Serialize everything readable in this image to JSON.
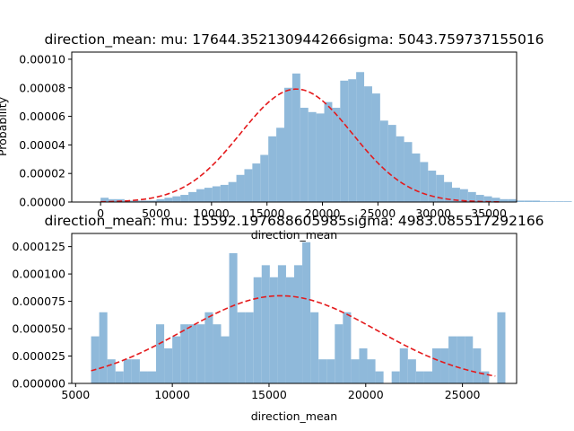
{
  "chart_data": [
    {
      "type": "bar",
      "title": "direction_mean:   mu: 17644.352130944266sigma:  5043.759737155016",
      "xlabel": "direction_mean",
      "ylabel": "Probability",
      "xlim": [
        -2600,
        37500
      ],
      "ylim": [
        0,
        0.000105
      ],
      "xticks": [
        0,
        5000,
        10000,
        15000,
        20000,
        25000,
        30000,
        35000
      ],
      "xtick_labels": [
        "0",
        "5000",
        "10000",
        "15000",
        "20000",
        "25000",
        "30000",
        "35000"
      ],
      "yticks": [
        0,
        2e-05,
        4e-05,
        6e-05,
        8e-05,
        0.0001
      ],
      "ytick_labels": [
        "0.00000",
        "0.00002",
        "0.00004",
        "0.00006",
        "0.00008",
        "0.00010"
      ],
      "bin_start": 0,
      "bin_width": 720,
      "values": [
        3e-06,
        2e-06,
        2e-06,
        1e-06,
        1e-06,
        1e-06,
        1e-06,
        2e-06,
        3e-06,
        4e-06,
        5e-06,
        7e-06,
        9e-06,
        1e-05,
        1.1e-05,
        1.2e-05,
        1.4e-05,
        1.9e-05,
        2.3e-05,
        2.7e-05,
        3.3e-05,
        4.6e-05,
        5.2e-05,
        8e-05,
        9e-05,
        6.6e-05,
        6.3e-05,
        6.2e-05,
        7e-05,
        6.6e-05,
        8.5e-05,
        8.6e-05,
        9.1e-05,
        8.1e-05,
        7.6e-05,
        5.7e-05,
        5.4e-05,
        4.6e-05,
        4.2e-05,
        3.4e-05,
        2.8e-05,
        2.2e-05,
        1.9e-05,
        1.4e-05,
        1e-05,
        9e-06,
        7e-06,
        5e-06,
        4e-06,
        3e-06,
        2e-06,
        2e-06,
        1e-06,
        1e-06,
        1e-06,
        5e-07,
        5e-07,
        5e-07,
        5e-07
      ],
      "fit_curve": {
        "mu": 17644.352130944266,
        "sigma": 5043.759737155016,
        "x_range": [
          0,
          36000
        ]
      },
      "bar_color": "#8fb9da",
      "curve_color": "#e41a1c"
    },
    {
      "type": "bar",
      "title": "direction_mean:   mu: 15592.197688605985sigma:  4983.085517292166",
      "xlabel": "direction_mean",
      "ylabel": "",
      "xlim": [
        4800,
        27800
      ],
      "ylim": [
        0,
        0.000137
      ],
      "xticks": [
        5000,
        10000,
        15000,
        20000,
        25000
      ],
      "xtick_labels": [
        "5000",
        "10000",
        "15000",
        "20000",
        "25000"
      ],
      "yticks": [
        0,
        2.5e-05,
        5e-05,
        7.5e-05,
        0.0001,
        0.000125
      ],
      "ytick_labels": [
        "0.000000",
        "0.000025",
        "0.000050",
        "0.000075",
        "0.000100",
        "0.000125"
      ],
      "bin_start": 5800,
      "bin_width": 420,
      "values": [
        4.3e-05,
        6.5e-05,
        2.2e-05,
        1.1e-05,
        2.2e-05,
        2.2e-05,
        1.1e-05,
        1.1e-05,
        5.4e-05,
        3.2e-05,
        4.3e-05,
        5.4e-05,
        5.4e-05,
        5.4e-05,
        6.5e-05,
        5.4e-05,
        4.3e-05,
        0.000119,
        6.5e-05,
        6.5e-05,
        9.7e-05,
        0.000108,
        9.7e-05,
        0.000108,
        9.7e-05,
        0.000108,
        0.000129,
        6.5e-05,
        2.2e-05,
        2.2e-05,
        5.4e-05,
        6.5e-05,
        2.2e-05,
        3.2e-05,
        2.2e-05,
        1.1e-05,
        0.0,
        1.1e-05,
        3.2e-05,
        2.2e-05,
        1.1e-05,
        1.1e-05,
        3.2e-05,
        3.2e-05,
        4.3e-05,
        4.3e-05,
        4.3e-05,
        3.2e-05,
        1.1e-05,
        0.0,
        6.5e-05
      ],
      "fit_curve": {
        "mu": 15592.197688605986,
        "sigma": 4983.085517292166,
        "x_range": [
          5800,
          26700
        ]
      },
      "bar_color": "#8fb9da",
      "curve_color": "#e41a1c"
    }
  ]
}
